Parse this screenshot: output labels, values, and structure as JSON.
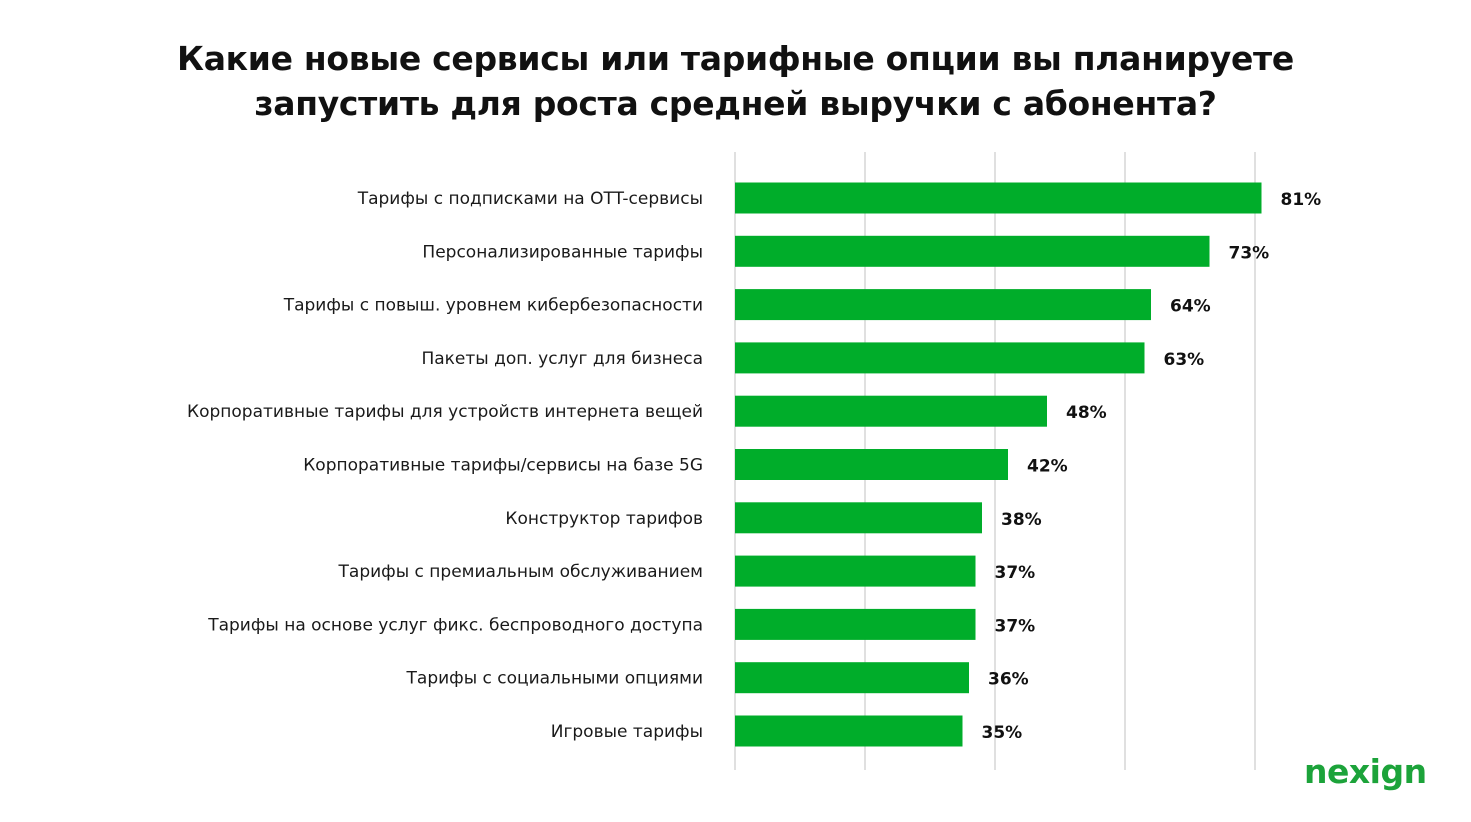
{
  "chart_data": {
    "type": "bar",
    "orientation": "horizontal",
    "title_lines": [
      "Какие новые сервисы или тарифные опции вы планируете",
      "запустить для роста средней выручки с абонента?"
    ],
    "categories": [
      "Тарифы с подписками на OTT-сервисы",
      "Персонализированные тарифы",
      "Тарифы с повыш. уровнем кибербезопасности",
      "Пакеты доп. услуг для бизнеса",
      "Корпоративные тарифы для устройств интернета вещей",
      "Корпоративные тарифы/сервисы на базе 5G",
      "Конструктор тарифов",
      "Тарифы с премиальным обслуживанием",
      "Тарифы на основе услуг фикс. беспроводного доступа",
      "Тарифы с социальными опциями",
      "Игровые тарифы"
    ],
    "values": [
      81,
      73,
      64,
      63,
      48,
      42,
      38,
      37,
      37,
      36,
      35
    ],
    "value_labels": [
      "81%",
      "73%",
      "64%",
      "63%",
      "48%",
      "42%",
      "38%",
      "37%",
      "37%",
      "36%",
      "35%"
    ],
    "xlim": [
      0,
      80
    ],
    "grid": true,
    "bar_color": "#00ad2a",
    "grid_color": "#d6d6d6"
  },
  "brand": {
    "logo_text": "nexign",
    "logo_color": "#1ca33a"
  }
}
